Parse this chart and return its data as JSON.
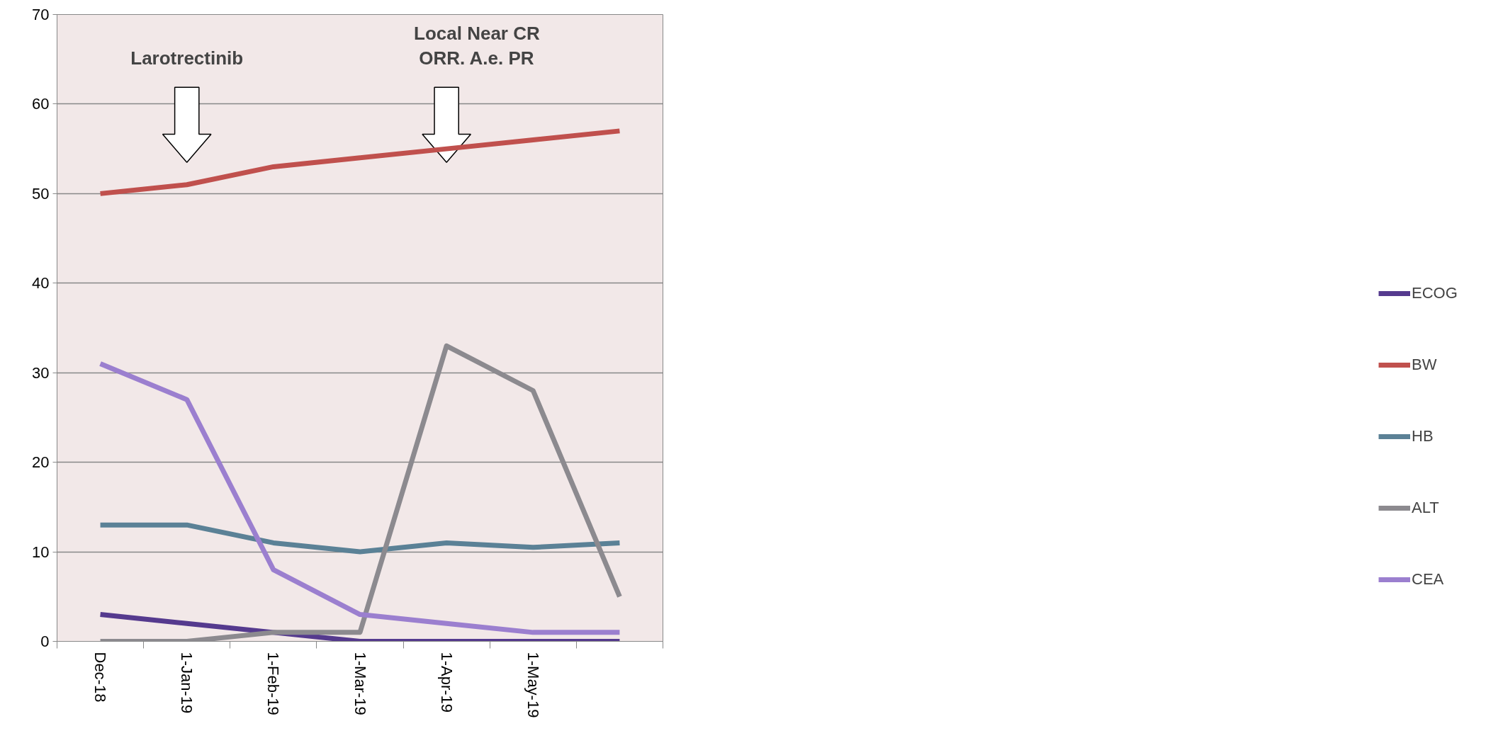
{
  "chart_data": {
    "type": "line",
    "categories": [
      "Dec-18",
      "1-Jan-19",
      "1-Feb-19",
      "1-Mar-19",
      "1-Apr-19",
      "1-May-19",
      null
    ],
    "series": [
      {
        "name": "ECOG",
        "color": "#553a8e",
        "values": [
          3,
          2,
          1,
          0,
          0,
          0,
          0
        ]
      },
      {
        "name": "BW",
        "color": "#c0504d",
        "values": [
          50,
          51,
          53,
          54,
          55,
          56,
          57
        ]
      },
      {
        "name": "HB",
        "color": "#5b8196",
        "values": [
          13,
          13,
          11,
          10,
          11,
          10.5,
          11
        ]
      },
      {
        "name": "ALT",
        "color": "#8c8a8f",
        "values": [
          0,
          0,
          1,
          1,
          33,
          28,
          5
        ]
      },
      {
        "name": "CEA",
        "color": "#9b7fcf",
        "values": [
          31,
          27,
          8,
          3,
          2,
          1,
          1
        ]
      }
    ],
    "ylim": [
      0,
      70
    ],
    "yticks": [
      0,
      10,
      20,
      30,
      40,
      50,
      60,
      70
    ],
    "grid": "y",
    "legend": "right",
    "marker": "none",
    "line_style": "solid",
    "annotations": [
      "Larotrectinib",
      "Local Near CR\nORR. A.e. PR"
    ]
  }
}
